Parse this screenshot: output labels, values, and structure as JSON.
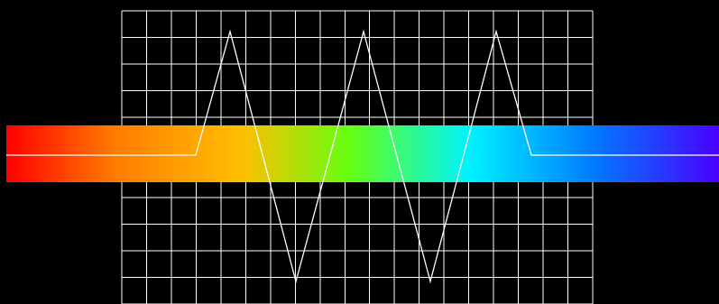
{
  "scene": {
    "background_color": "#000000",
    "grid": {
      "visible": true,
      "color": "#ffffff",
      "columns": 19,
      "rows": 11
    },
    "spectrum_band": {
      "gradient": [
        {
          "stop": 0.0,
          "color": "#ff0000"
        },
        {
          "stop": 0.15,
          "color": "#ff7a00"
        },
        {
          "stop": 0.33,
          "color": "#ffbe00"
        },
        {
          "stop": 0.48,
          "color": "#66ff11"
        },
        {
          "stop": 0.65,
          "color": "#00f2ff"
        },
        {
          "stop": 0.82,
          "color": "#007dff"
        },
        {
          "stop": 1.0,
          "color": "#4a00ff"
        }
      ]
    },
    "waveform": {
      "color": "#ffffff",
      "shape": "triangle",
      "peaks": 3,
      "troughs": 2
    }
  }
}
